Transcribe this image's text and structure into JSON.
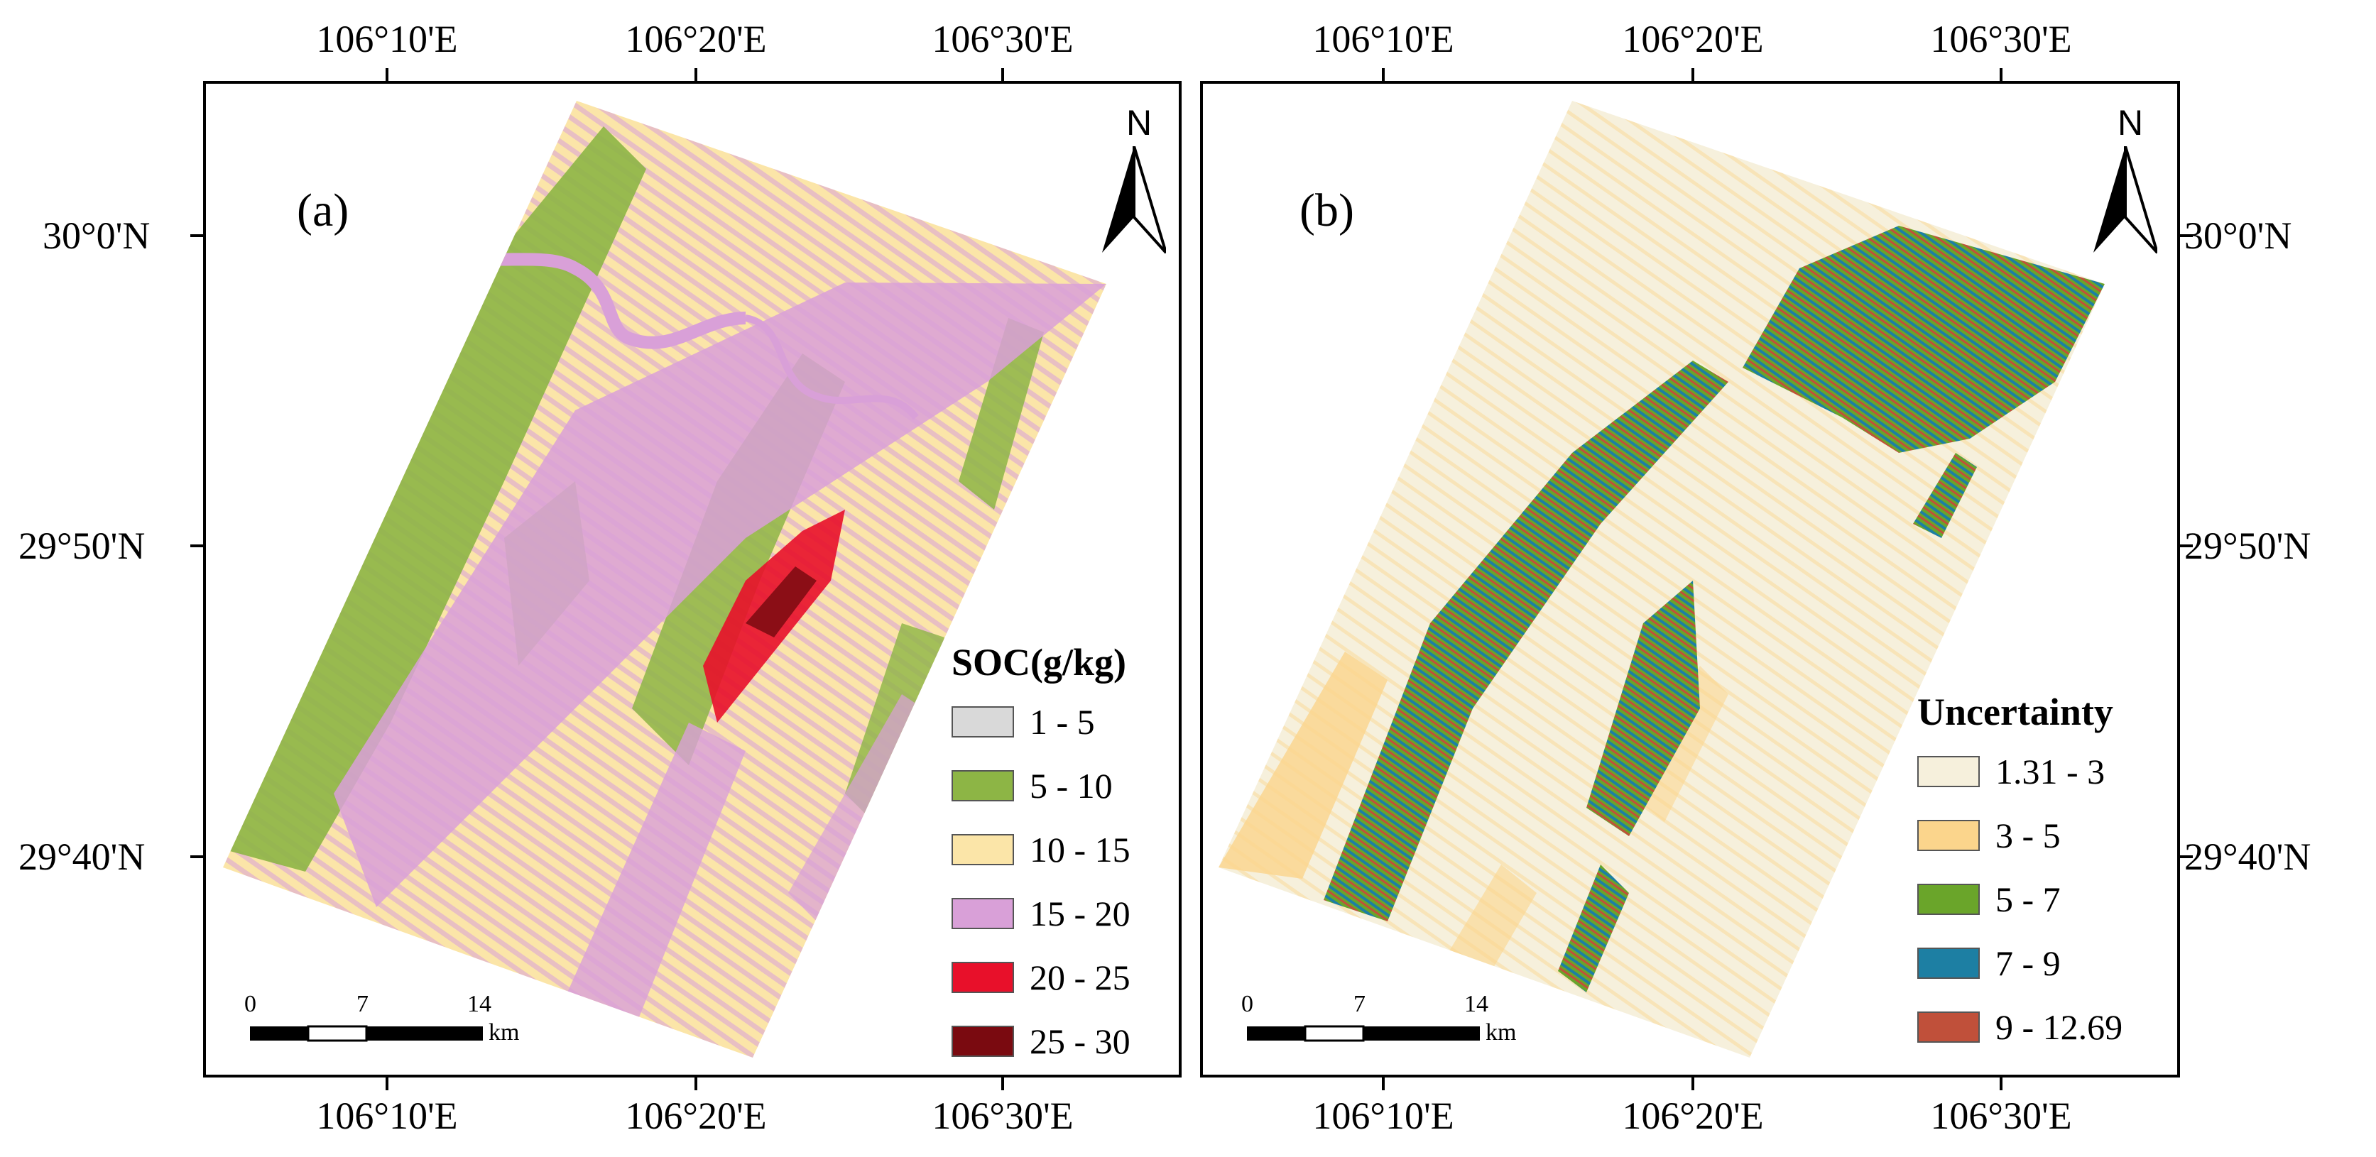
{
  "panels": [
    {
      "id": "a",
      "letter": "(a)",
      "legend": {
        "title": "SOC(g/kg)",
        "classes": [
          {
            "label": "1 - 5",
            "color": "#d9d9d9"
          },
          {
            "label": "5 - 10",
            "color": "#8db545"
          },
          {
            "label": "10 - 15",
            "color": "#fbe5a8"
          },
          {
            "label": "15 - 20",
            "color": "#d9a0d8"
          },
          {
            "label": "20 - 25",
            "color": "#e8102a"
          },
          {
            "label": "25 - 30",
            "color": "#7a0a10"
          }
        ]
      },
      "north": "N",
      "scale": {
        "ticks": [
          "0",
          "7",
          "14"
        ],
        "unit": "km"
      },
      "lon_labels": [
        "106°10'E",
        "106°20'E",
        "106°30'E"
      ],
      "lat_labels": [
        "30°0'N",
        "29°50'N",
        "29°40'N"
      ]
    },
    {
      "id": "b",
      "letter": "(b)",
      "legend": {
        "title": "Uncertainty",
        "classes": [
          {
            "label": "1.31 - 3",
            "color": "#f6f0dc"
          },
          {
            "label": "3 - 5",
            "color": "#fbd58c"
          },
          {
            "label": "5 - 7",
            "color": "#6aa52a"
          },
          {
            "label": "7 - 9",
            "color": "#1d7fa3"
          },
          {
            "label": "9 - 12.69",
            "color": "#c0503a"
          }
        ]
      },
      "north": "N",
      "scale": {
        "ticks": [
          "0",
          "7",
          "14"
        ],
        "unit": "km"
      },
      "lon_labels": [
        "106°10'E",
        "106°20'E",
        "106°30'E"
      ],
      "lat_labels": [
        "30°0'N",
        "29°50'N",
        "29°40'N"
      ]
    }
  ]
}
